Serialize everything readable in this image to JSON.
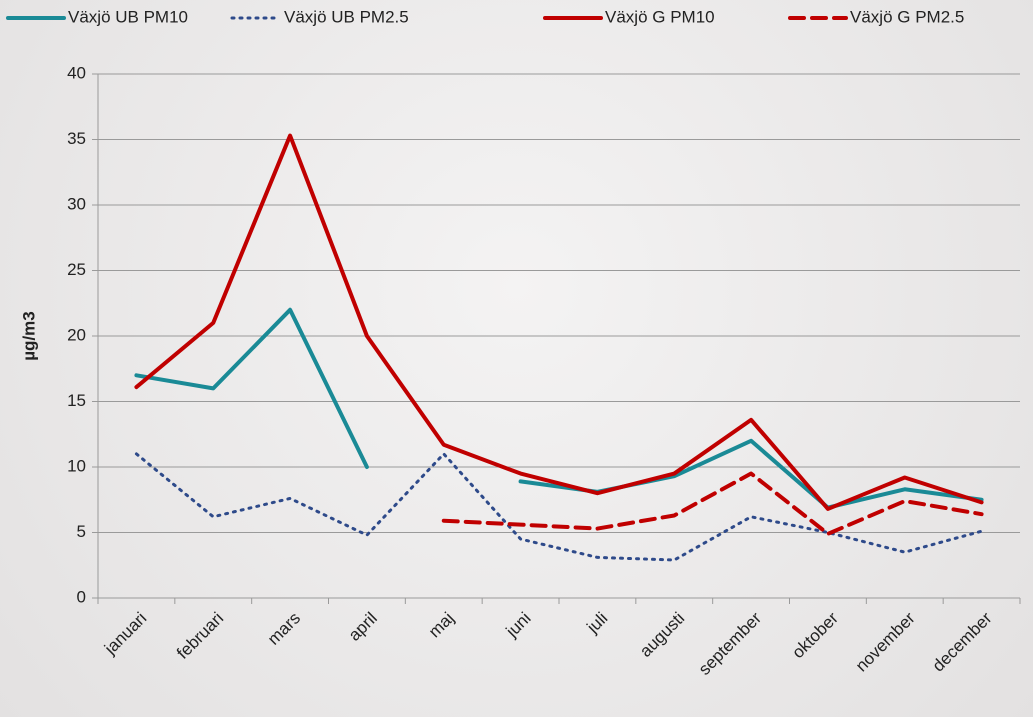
{
  "chart_data": {
    "type": "line",
    "y_label": "µg/m3",
    "categories": [
      "januari",
      "februari",
      "mars",
      "april",
      "maj",
      "juni",
      "juli",
      "augusti",
      "september",
      "oktober",
      "november",
      "december"
    ],
    "series": [
      {
        "name": "Växjö UB PM10",
        "color": "#1a8a96",
        "style": "solid",
        "values": [
          17,
          16,
          22,
          10,
          null,
          8.9,
          8.1,
          9.3,
          12,
          6.9,
          8.3,
          7.5
        ]
      },
      {
        "name": "Växjö UB PM2.5",
        "color": "#2e4a8a",
        "style": "dotted",
        "values": [
          11,
          6.2,
          7.6,
          4.8,
          11,
          4.5,
          3.1,
          2.9,
          6.2,
          5.0,
          3.5,
          5.1
        ]
      },
      {
        "name": "Växjö G PM10",
        "color": "#c00000",
        "style": "solid",
        "values": [
          16.1,
          21,
          35.3,
          20,
          11.7,
          9.5,
          8.0,
          9.5,
          13.6,
          6.8,
          9.2,
          7.3
        ]
      },
      {
        "name": "Växjö G PM2.5",
        "color": "#c00000",
        "style": "dashed",
        "values": [
          null,
          null,
          null,
          null,
          5.9,
          5.6,
          5.3,
          6.3,
          9.5,
          4.9,
          7.4,
          6.4
        ]
      }
    ],
    "ylim": [
      0,
      40
    ],
    "yticks": [
      0,
      5,
      10,
      15,
      20,
      25,
      30,
      35,
      40
    ],
    "grid": true,
    "legend": "top"
  }
}
